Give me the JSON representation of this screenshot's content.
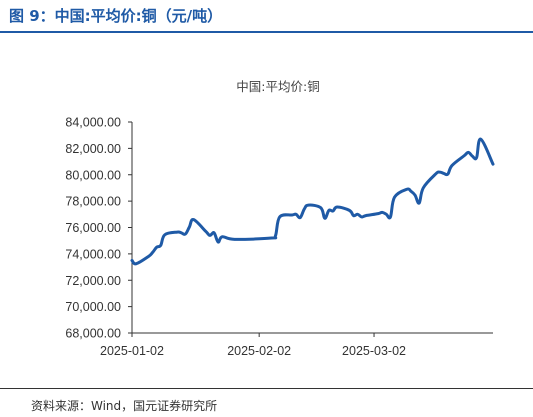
{
  "figure": {
    "title": "图 9：中国:平均价:铜（元/吨）",
    "source": "资料来源：Wind，国元证券研究所"
  },
  "chart_data": {
    "type": "line",
    "title": "中国:平均价:铜",
    "xlabel": "",
    "ylabel": "",
    "ylim": [
      68000,
      84000
    ],
    "y_ticks": [
      68000,
      70000,
      72000,
      74000,
      76000,
      78000,
      80000,
      82000,
      84000
    ],
    "y_tick_labels": [
      "68,000.00",
      "70,000.00",
      "72,000.00",
      "74,000.00",
      "76,000.00",
      "78,000.00",
      "80,000.00",
      "82,000.00",
      "84,000.00"
    ],
    "x_tick_labels": [
      "2025-01-02",
      "2025-02-02",
      "2025-03-02"
    ],
    "x_tick_dates": [
      "2025-01-02",
      "2025-02-02",
      "2025-03-02"
    ],
    "xlim": [
      "2025-01-02",
      "2025-03-31"
    ],
    "grid": false,
    "legend": "none",
    "line_color": "#1f5aa6",
    "series": [
      {
        "name": "",
        "points": [
          [
            "2025-01-02",
            73500
          ],
          [
            "2025-01-03",
            73250
          ],
          [
            "2025-01-06",
            73800
          ],
          [
            "2025-01-07",
            74100
          ],
          [
            "2025-01-08",
            74500
          ],
          [
            "2025-01-09",
            74650
          ],
          [
            "2025-01-10",
            75450
          ],
          [
            "2025-01-13",
            75650
          ],
          [
            "2025-01-14",
            75600
          ],
          [
            "2025-01-15",
            75500
          ],
          [
            "2025-01-16",
            76050
          ],
          [
            "2025-01-17",
            76600
          ],
          [
            "2025-01-20",
            75700
          ],
          [
            "2025-01-21",
            75400
          ],
          [
            "2025-01-22",
            75600
          ],
          [
            "2025-01-23",
            74900
          ],
          [
            "2025-01-24",
            75300
          ],
          [
            "2025-01-27",
            75100
          ],
          [
            "2025-02-05",
            75200
          ],
          [
            "2025-02-06",
            75400
          ],
          [
            "2025-02-07",
            76800
          ],
          [
            "2025-02-10",
            76950
          ],
          [
            "2025-02-11",
            77000
          ],
          [
            "2025-02-12",
            76750
          ],
          [
            "2025-02-13",
            77400
          ],
          [
            "2025-02-14",
            77700
          ],
          [
            "2025-02-17",
            77500
          ],
          [
            "2025-02-18",
            76700
          ],
          [
            "2025-02-19",
            77300
          ],
          [
            "2025-02-20",
            77250
          ],
          [
            "2025-02-21",
            77550
          ],
          [
            "2025-02-24",
            77300
          ],
          [
            "2025-02-25",
            76900
          ],
          [
            "2025-02-26",
            77000
          ],
          [
            "2025-02-27",
            76800
          ],
          [
            "2025-02-28",
            76900
          ],
          [
            "2025-03-03",
            77050
          ],
          [
            "2025-03-04",
            77150
          ],
          [
            "2025-03-05",
            77000
          ],
          [
            "2025-03-06",
            76800
          ],
          [
            "2025-03-07",
            78300
          ],
          [
            "2025-03-10",
            78900
          ],
          [
            "2025-03-11",
            78750
          ],
          [
            "2025-03-12",
            78450
          ],
          [
            "2025-03-13",
            77850
          ],
          [
            "2025-03-14",
            79000
          ],
          [
            "2025-03-17",
            80050
          ],
          [
            "2025-03-18",
            80200
          ],
          [
            "2025-03-19",
            80100
          ],
          [
            "2025-03-20",
            80050
          ],
          [
            "2025-03-21",
            80700
          ],
          [
            "2025-03-24",
            81450
          ],
          [
            "2025-03-25",
            81700
          ],
          [
            "2025-03-26",
            81400
          ],
          [
            "2025-03-27",
            81300
          ],
          [
            "2025-03-28",
            82700
          ],
          [
            "2025-03-31",
            80800
          ]
        ]
      }
    ]
  }
}
